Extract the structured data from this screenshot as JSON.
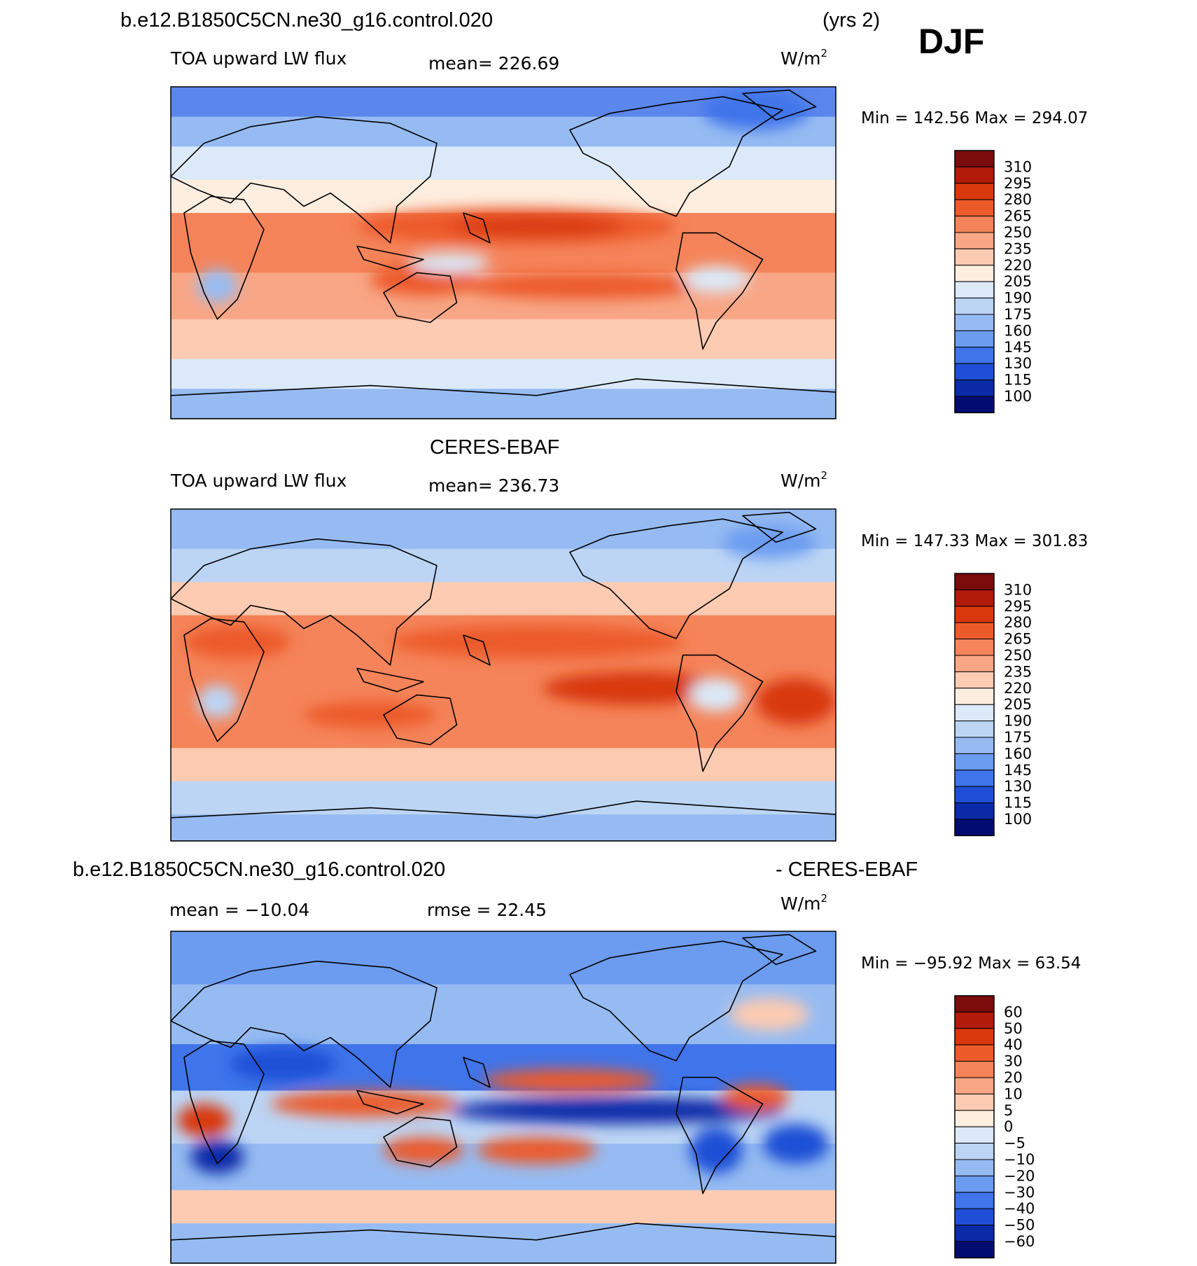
{
  "header": {
    "case_name": "b.e12.B1850C5CN.ne30_g16.control.020",
    "years": "(yrs 2)",
    "season": "DJF"
  },
  "diff_header": {
    "case_name": "b.e12.B1850C5CN.ne30_g16.control.020",
    "obs_suffix": "- CERES-EBAF"
  },
  "colors": {
    "ocean_base": "#f4b49c",
    "coastline": "#000000"
  },
  "chart_data": [
    {
      "type": "heatmap",
      "id": "model",
      "title": "",
      "variable": "TOA upward LW flux",
      "mean_text": "mean=  226.69",
      "units": "W/m",
      "units_sup": "2",
      "minmax_text": "Min  =  142.56  Max  =  294.07",
      "colorbar": {
        "labels": [
          "310",
          "295",
          "280",
          "265",
          "250",
          "235",
          "220",
          "205",
          "190",
          "175",
          "160",
          "145",
          "130",
          "115",
          "100"
        ],
        "colors": [
          "#7a0c0c",
          "#b21a0a",
          "#d8380c",
          "#ec5a2a",
          "#f5845a",
          "#f8a686",
          "#fccbb2",
          "#fdeee0",
          "#dbe9f8",
          "#bcd5f5",
          "#96bbf2",
          "#6c9cf0",
          "#3f74ea",
          "#1f4fd6",
          "#0a2aa8",
          "#020c70"
        ]
      },
      "bands": [
        {
          "y0": 0,
          "y1": 0.09,
          "color": "#5b86ec"
        },
        {
          "y0": 0.09,
          "y1": 0.18,
          "color": "#96bbf2"
        },
        {
          "y0": 0.18,
          "y1": 0.28,
          "color": "#dbe9f8"
        },
        {
          "y0": 0.28,
          "y1": 0.38,
          "color": "#fdeee0"
        },
        {
          "y0": 0.38,
          "y1": 0.56,
          "color": "#f5845a"
        },
        {
          "y0": 0.56,
          "y1": 0.7,
          "color": "#f8a686"
        },
        {
          "y0": 0.7,
          "y1": 0.82,
          "color": "#fccbb2"
        },
        {
          "y0": 0.82,
          "y1": 0.91,
          "color": "#dbe9f8"
        },
        {
          "y0": 0.91,
          "y1": 1.0,
          "color": "#96bbf2"
        }
      ],
      "blobs": [
        {
          "cx": 0.52,
          "cy": 0.42,
          "rx": 0.24,
          "ry": 0.055,
          "color": "#ec5a2a"
        },
        {
          "cx": 0.55,
          "cy": 0.42,
          "rx": 0.13,
          "ry": 0.03,
          "color": "#d8380c"
        },
        {
          "cx": 0.62,
          "cy": 0.6,
          "rx": 0.18,
          "ry": 0.04,
          "color": "#ec5a2a"
        },
        {
          "cx": 0.38,
          "cy": 0.58,
          "rx": 0.08,
          "ry": 0.05,
          "color": "#ec5a2a"
        },
        {
          "cx": 0.07,
          "cy": 0.6,
          "rx": 0.03,
          "ry": 0.05,
          "color": "#96bbf2"
        },
        {
          "cx": 0.42,
          "cy": 0.53,
          "rx": 0.06,
          "ry": 0.03,
          "color": "#dbe9f8"
        },
        {
          "cx": 0.82,
          "cy": 0.58,
          "rx": 0.05,
          "ry": 0.04,
          "color": "#dbe9f8"
        },
        {
          "cx": 0.88,
          "cy": 0.07,
          "rx": 0.08,
          "ry": 0.06,
          "color": "#3f74ea"
        }
      ]
    },
    {
      "type": "heatmap",
      "id": "obs",
      "title": "CERES-EBAF",
      "variable": "TOA upward LW flux",
      "mean_text": "mean=  236.73",
      "units": "W/m",
      "units_sup": "2",
      "minmax_text": "Min  =  147.33  Max  =  301.83",
      "colorbar": {
        "labels": [
          "310",
          "295",
          "280",
          "265",
          "250",
          "235",
          "220",
          "205",
          "190",
          "175",
          "160",
          "145",
          "130",
          "115",
          "100"
        ],
        "colors": [
          "#7a0c0c",
          "#b21a0a",
          "#d8380c",
          "#ec5a2a",
          "#f5845a",
          "#f8a686",
          "#fccbb2",
          "#fdeee0",
          "#dbe9f8",
          "#bcd5f5",
          "#96bbf2",
          "#6c9cf0",
          "#3f74ea",
          "#1f4fd6",
          "#0a2aa8",
          "#020c70"
        ]
      },
      "bands": [
        {
          "y0": 0,
          "y1": 0.12,
          "color": "#96bbf2"
        },
        {
          "y0": 0.12,
          "y1": 0.22,
          "color": "#bcd5f5"
        },
        {
          "y0": 0.22,
          "y1": 0.32,
          "color": "#fccbb2"
        },
        {
          "y0": 0.32,
          "y1": 0.72,
          "color": "#f5845a"
        },
        {
          "y0": 0.72,
          "y1": 0.82,
          "color": "#fccbb2"
        },
        {
          "y0": 0.82,
          "y1": 0.92,
          "color": "#bcd5f5"
        },
        {
          "y0": 0.92,
          "y1": 1.0,
          "color": "#96bbf2"
        }
      ],
      "blobs": [
        {
          "cx": 0.55,
          "cy": 0.4,
          "rx": 0.22,
          "ry": 0.05,
          "color": "#ec5a2a"
        },
        {
          "cx": 0.7,
          "cy": 0.54,
          "rx": 0.14,
          "ry": 0.05,
          "color": "#d8380c"
        },
        {
          "cx": 0.94,
          "cy": 0.58,
          "rx": 0.06,
          "ry": 0.07,
          "color": "#d8380c"
        },
        {
          "cx": 0.3,
          "cy": 0.62,
          "rx": 0.1,
          "ry": 0.04,
          "color": "#ec5a2a"
        },
        {
          "cx": 0.1,
          "cy": 0.4,
          "rx": 0.08,
          "ry": 0.05,
          "color": "#ec5a2a"
        },
        {
          "cx": 0.07,
          "cy": 0.58,
          "rx": 0.03,
          "ry": 0.05,
          "color": "#bcd5f5"
        },
        {
          "cx": 0.82,
          "cy": 0.56,
          "rx": 0.04,
          "ry": 0.05,
          "color": "#dbe9f8"
        },
        {
          "cx": 0.9,
          "cy": 0.1,
          "rx": 0.07,
          "ry": 0.05,
          "color": "#6c9cf0"
        }
      ]
    },
    {
      "type": "heatmap",
      "id": "diff",
      "title": "",
      "variable": "",
      "mean_text": "mean  =  −10.04",
      "rmse_text": "rmse  =    22.45",
      "units": "W/m",
      "units_sup": "2",
      "minmax_text": "Min  =  −95.92  Max  =    63.54",
      "colorbar": {
        "labels": [
          "60",
          "50",
          "40",
          "30",
          "20",
          "10",
          "5",
          "0",
          "−5",
          "−10",
          "−20",
          "−30",
          "−40",
          "−50",
          "−60"
        ],
        "colors": [
          "#7a0c0c",
          "#b21a0a",
          "#d8380c",
          "#ec5a2a",
          "#f5845a",
          "#f8a686",
          "#fccbb2",
          "#fdeee0",
          "#dbe9f8",
          "#bcd5f5",
          "#96bbf2",
          "#6c9cf0",
          "#3f74ea",
          "#1f4fd6",
          "#0a2aa8",
          "#020c70"
        ]
      },
      "bands": [
        {
          "y0": 0,
          "y1": 0.16,
          "color": "#6c9cf0"
        },
        {
          "y0": 0.16,
          "y1": 0.34,
          "color": "#96bbf2"
        },
        {
          "y0": 0.34,
          "y1": 0.48,
          "color": "#3f74ea"
        },
        {
          "y0": 0.48,
          "y1": 0.64,
          "color": "#bcd5f5"
        },
        {
          "y0": 0.64,
          "y1": 0.78,
          "color": "#96bbf2"
        },
        {
          "y0": 0.78,
          "y1": 0.88,
          "color": "#fccbb2"
        },
        {
          "y0": 0.88,
          "y1": 1.0,
          "color": "#96bbf2"
        }
      ],
      "blobs": [
        {
          "cx": 0.67,
          "cy": 0.54,
          "rx": 0.25,
          "ry": 0.04,
          "color": "#0a2aa8"
        },
        {
          "cx": 0.6,
          "cy": 0.45,
          "rx": 0.13,
          "ry": 0.035,
          "color": "#ec5a2a"
        },
        {
          "cx": 0.29,
          "cy": 0.52,
          "rx": 0.14,
          "ry": 0.04,
          "color": "#ec5a2a"
        },
        {
          "cx": 0.05,
          "cy": 0.57,
          "rx": 0.04,
          "ry": 0.05,
          "color": "#d8380c"
        },
        {
          "cx": 0.07,
          "cy": 0.68,
          "rx": 0.04,
          "ry": 0.05,
          "color": "#0a2aa8"
        },
        {
          "cx": 0.17,
          "cy": 0.4,
          "rx": 0.08,
          "ry": 0.05,
          "color": "#1f4fd6"
        },
        {
          "cx": 0.55,
          "cy": 0.66,
          "rx": 0.09,
          "ry": 0.04,
          "color": "#ec5a2a"
        },
        {
          "cx": 0.88,
          "cy": 0.5,
          "rx": 0.05,
          "ry": 0.04,
          "color": "#ec5a2a"
        },
        {
          "cx": 0.94,
          "cy": 0.64,
          "rx": 0.05,
          "ry": 0.06,
          "color": "#1f4fd6"
        },
        {
          "cx": 0.82,
          "cy": 0.66,
          "rx": 0.04,
          "ry": 0.07,
          "color": "#1f4fd6"
        },
        {
          "cx": 0.38,
          "cy": 0.66,
          "rx": 0.06,
          "ry": 0.04,
          "color": "#ec5a2a"
        },
        {
          "cx": 0.9,
          "cy": 0.25,
          "rx": 0.06,
          "ry": 0.05,
          "color": "#fccbb2"
        }
      ]
    }
  ]
}
